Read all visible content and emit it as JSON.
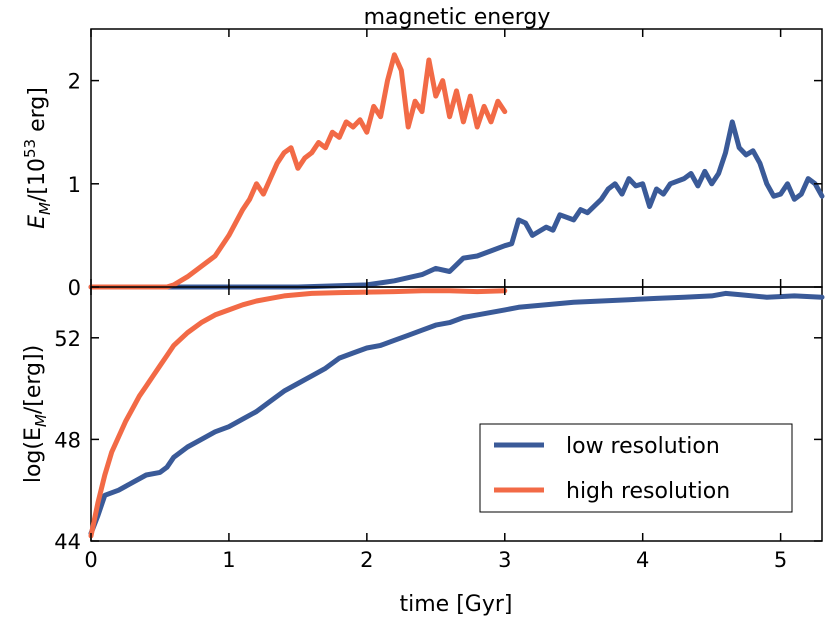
{
  "chart_data": [
    {
      "type": "line",
      "title": "magnetic energy",
      "xlabel": "",
      "ylabel": "E_M/[10^53 erg]",
      "ylabel_parts": {
        "a": "E",
        "b": "M",
        "c": "/[10",
        "d": "53",
        "e": " erg]"
      },
      "xlim": [
        0,
        5.3
      ],
      "ylim": [
        0,
        2.5
      ],
      "yticks": [
        "0",
        "1",
        "2"
      ],
      "series": [
        {
          "name": "low resolution",
          "color": "#3a5a98",
          "x": [
            0,
            0.5,
            1.0,
            1.5,
            2.0,
            2.2,
            2.4,
            2.5,
            2.6,
            2.7,
            2.8,
            2.9,
            3.0,
            3.05,
            3.1,
            3.15,
            3.2,
            3.3,
            3.35,
            3.4,
            3.5,
            3.55,
            3.6,
            3.7,
            3.75,
            3.8,
            3.85,
            3.9,
            3.95,
            4.0,
            4.05,
            4.1,
            4.15,
            4.2,
            4.3,
            4.35,
            4.4,
            4.45,
            4.5,
            4.55,
            4.6,
            4.65,
            4.7,
            4.75,
            4.8,
            4.85,
            4.9,
            4.95,
            5.0,
            5.05,
            5.1,
            5.15,
            5.2,
            5.25,
            5.3
          ],
          "y": [
            0,
            0,
            0,
            0,
            0.02,
            0.06,
            0.12,
            0.18,
            0.15,
            0.28,
            0.3,
            0.35,
            0.4,
            0.42,
            0.65,
            0.62,
            0.5,
            0.58,
            0.55,
            0.7,
            0.65,
            0.75,
            0.72,
            0.85,
            0.95,
            1.0,
            0.9,
            1.05,
            0.98,
            1.0,
            0.78,
            0.95,
            0.9,
            1.0,
            1.05,
            1.1,
            0.98,
            1.12,
            1.0,
            1.1,
            1.3,
            1.6,
            1.35,
            1.28,
            1.32,
            1.2,
            1.0,
            0.88,
            0.9,
            1.0,
            0.85,
            0.9,
            1.05,
            1.0,
            0.88
          ]
        },
        {
          "name": "high resolution",
          "color": "#f26a46",
          "x": [
            0,
            0.55,
            0.6,
            0.7,
            0.8,
            0.9,
            1.0,
            1.1,
            1.15,
            1.2,
            1.25,
            1.3,
            1.35,
            1.4,
            1.45,
            1.5,
            1.55,
            1.6,
            1.65,
            1.7,
            1.75,
            1.8,
            1.85,
            1.9,
            1.95,
            2.0,
            2.05,
            2.1,
            2.15,
            2.2,
            2.25,
            2.3,
            2.35,
            2.4,
            2.45,
            2.5,
            2.55,
            2.6,
            2.65,
            2.7,
            2.75,
            2.8,
            2.85,
            2.9,
            2.95,
            3.0
          ],
          "y": [
            0,
            0,
            0.02,
            0.1,
            0.2,
            0.3,
            0.5,
            0.75,
            0.85,
            1.0,
            0.9,
            1.05,
            1.2,
            1.3,
            1.35,
            1.15,
            1.25,
            1.3,
            1.4,
            1.35,
            1.5,
            1.45,
            1.6,
            1.55,
            1.62,
            1.5,
            1.75,
            1.65,
            2.0,
            2.25,
            2.1,
            1.55,
            1.8,
            1.7,
            2.2,
            1.85,
            2.0,
            1.65,
            1.9,
            1.6,
            1.85,
            1.55,
            1.75,
            1.6,
            1.8,
            1.7
          ]
        }
      ]
    },
    {
      "type": "line",
      "title": "",
      "xlabel": "time [Gyr]",
      "ylabel": "log(E_M/[erg])",
      "ylabel_parts": {
        "a": "log(E",
        "b": "M",
        "c": "/[erg])"
      },
      "xlim": [
        0,
        5.3
      ],
      "ylim": [
        44,
        54
      ],
      "yticks": [
        "44",
        "48",
        "52"
      ],
      "xticks": [
        "0",
        "1",
        "2",
        "3",
        "4",
        "5"
      ],
      "legend": {
        "placement": "lower-right",
        "entries": [
          "low resolution",
          "high resolution"
        ]
      },
      "series": [
        {
          "name": "low resolution",
          "color": "#3a5a98",
          "x": [
            0,
            0.05,
            0.1,
            0.2,
            0.3,
            0.4,
            0.5,
            0.55,
            0.6,
            0.7,
            0.8,
            0.9,
            1.0,
            1.1,
            1.2,
            1.3,
            1.4,
            1.5,
            1.6,
            1.7,
            1.8,
            1.9,
            2.0,
            2.1,
            2.2,
            2.3,
            2.4,
            2.5,
            2.6,
            2.7,
            2.8,
            2.9,
            3.0,
            3.1,
            3.2,
            3.3,
            3.4,
            3.5,
            3.7,
            3.9,
            4.1,
            4.3,
            4.5,
            4.6,
            4.7,
            4.9,
            5.1,
            5.3
          ],
          "y": [
            44.3,
            45.0,
            45.8,
            46.0,
            46.3,
            46.6,
            46.7,
            46.9,
            47.3,
            47.7,
            48.0,
            48.3,
            48.5,
            48.8,
            49.1,
            49.5,
            49.9,
            50.2,
            50.5,
            50.8,
            51.2,
            51.4,
            51.6,
            51.7,
            51.9,
            52.1,
            52.3,
            52.5,
            52.6,
            52.8,
            52.9,
            53.0,
            53.1,
            53.2,
            53.25,
            53.3,
            53.35,
            53.4,
            53.45,
            53.5,
            53.55,
            53.6,
            53.65,
            53.75,
            53.7,
            53.6,
            53.65,
            53.6
          ]
        },
        {
          "name": "high resolution",
          "color": "#f26a46",
          "x": [
            0,
            0.05,
            0.1,
            0.15,
            0.2,
            0.25,
            0.3,
            0.35,
            0.4,
            0.45,
            0.5,
            0.55,
            0.6,
            0.7,
            0.8,
            0.9,
            1.0,
            1.1,
            1.2,
            1.3,
            1.4,
            1.5,
            1.6,
            1.8,
            2.0,
            2.2,
            2.4,
            2.6,
            2.8,
            3.0
          ],
          "y": [
            44.2,
            45.5,
            46.6,
            47.5,
            48.1,
            48.7,
            49.2,
            49.7,
            50.1,
            50.5,
            50.9,
            51.3,
            51.7,
            52.2,
            52.6,
            52.9,
            53.1,
            53.3,
            53.45,
            53.55,
            53.65,
            53.7,
            53.75,
            53.78,
            53.8,
            53.82,
            53.85,
            53.85,
            53.82,
            53.85
          ]
        }
      ]
    }
  ]
}
